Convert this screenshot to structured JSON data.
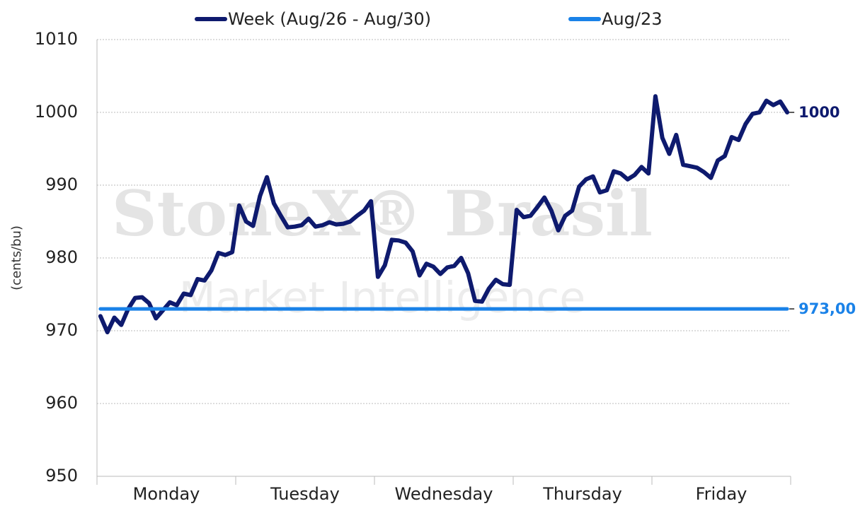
{
  "chart_data": {
    "type": "line",
    "y_label": "(cents/bu)",
    "watermark": [
      "StoneX® Brasil",
      "Market Intelligence"
    ],
    "categories": [
      "Monday",
      null,
      null,
      null,
      null,
      null,
      null,
      null,
      null,
      null,
      null,
      null,
      null,
      null,
      null,
      null,
      null,
      null,
      null,
      null,
      "Tuesday",
      null,
      null,
      null,
      null,
      null,
      null,
      null,
      null,
      null,
      null,
      null,
      null,
      null,
      null,
      null,
      null,
      null,
      null,
      null,
      "Wednesday",
      null,
      null,
      null,
      null,
      null,
      null,
      null,
      null,
      null,
      null,
      null,
      null,
      null,
      null,
      null,
      null,
      null,
      null,
      null,
      "Thursday",
      null,
      null,
      null,
      null,
      null,
      null,
      null,
      null,
      null,
      null,
      null,
      null,
      null,
      null,
      null,
      null,
      null,
      null,
      null,
      "Friday",
      null,
      null,
      null,
      null,
      null,
      null,
      null,
      null,
      null,
      null,
      null,
      null,
      null,
      null,
      null,
      null,
      null,
      null,
      null
    ],
    "series": [
      {
        "name": "Week (Aug/26 - Aug/30)",
        "color": "#0e1a6e",
        "end_label": "1000",
        "values": [
          972,
          969.8,
          971.8,
          970.8,
          973,
          974.5,
          974.6,
          973.8,
          971.7,
          972.8,
          973.9,
          973.5,
          975.1,
          974.9,
          977.1,
          976.9,
          978.3,
          980.7,
          980.4,
          980.8,
          987.2,
          985,
          984.4,
          988.5,
          991.1,
          987.5,
          985.8,
          984.2,
          984.3,
          984.5,
          985.4,
          984.3,
          984.5,
          984.9,
          984.6,
          984.7,
          985,
          985.8,
          986.5,
          987.8,
          977.4,
          979,
          982.5,
          982.4,
          982.1,
          980.9,
          977.6,
          979.2,
          978.8,
          977.8,
          978.7,
          978.9,
          980,
          977.9,
          974.1,
          974,
          975.8,
          977,
          976.4,
          976.3,
          986.6,
          985.6,
          985.8,
          987,
          988.3,
          986.5,
          983.8,
          985.8,
          986.5,
          989.8,
          990.8,
          991.2,
          989,
          989.3,
          991.9,
          991.6,
          990.8,
          991.4,
          992.5,
          991.6,
          1002.2,
          996.5,
          994.3,
          996.9,
          992.8,
          992.6,
          992.4,
          991.8,
          991,
          993.4,
          994,
          996.6,
          996.2,
          998.4,
          999.8,
          1000,
          1001.6,
          1001,
          1001.5,
          1000
        ]
      },
      {
        "name": "Aug/23",
        "color": "#1a82e8",
        "end_label": "973,00",
        "values": [
          973,
          973,
          973,
          973,
          973,
          973,
          973,
          973,
          973,
          973,
          973,
          973,
          973,
          973,
          973,
          973,
          973,
          973,
          973,
          973,
          973,
          973,
          973,
          973,
          973,
          973,
          973,
          973,
          973,
          973,
          973,
          973,
          973,
          973,
          973,
          973,
          973,
          973,
          973,
          973,
          973,
          973,
          973,
          973,
          973,
          973,
          973,
          973,
          973,
          973,
          973,
          973,
          973,
          973,
          973,
          973,
          973,
          973,
          973,
          973,
          973,
          973,
          973,
          973,
          973,
          973,
          973,
          973,
          973,
          973,
          973,
          973,
          973,
          973,
          973,
          973,
          973,
          973,
          973,
          973,
          973,
          973,
          973,
          973,
          973,
          973,
          973,
          973,
          973,
          973,
          973,
          973,
          973,
          973,
          973,
          973,
          973,
          973,
          973,
          973
        ]
      }
    ],
    "ylim": [
      950,
      1010
    ],
    "yticks": [
      950,
      960,
      970,
      980,
      990,
      1000,
      1010
    ],
    "grid": true,
    "legend": "top"
  }
}
